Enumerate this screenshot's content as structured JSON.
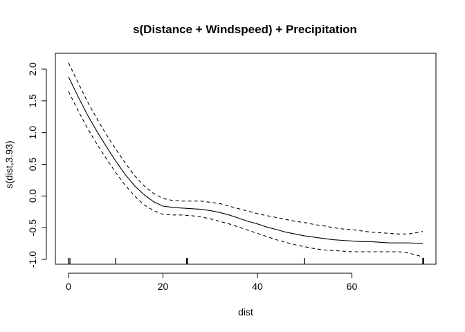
{
  "chart_data": {
    "type": "line",
    "title": "s(Distance + Windspeed) + Precipitation",
    "xlabel": "dist",
    "ylabel": "s(dist,3.93)",
    "xlim": [
      0,
      75
    ],
    "ylim": [
      -1.0,
      2.0
    ],
    "x_ticks": [
      0,
      20,
      40,
      60
    ],
    "y_ticks": [
      -1.0,
      -0.5,
      0.0,
      0.5,
      1.0,
      1.5,
      2.0
    ],
    "x_tick_labels": [
      "0",
      "20",
      "40",
      "60"
    ],
    "y_tick_labels": [
      "-1.0",
      "-0.5",
      "0.0",
      "0.5",
      "1.0",
      "1.5",
      "2.0"
    ],
    "grid": false,
    "series": [
      {
        "line_style": "solid",
        "x": [
          0,
          2,
          4,
          6,
          8,
          10,
          12,
          14,
          16,
          18,
          20,
          22,
          24,
          26,
          28,
          30,
          32,
          34,
          36,
          38,
          40,
          42,
          44,
          46,
          48,
          50,
          52,
          54,
          56,
          58,
          60,
          62,
          64,
          66,
          68,
          70,
          72,
          75
        ],
        "y": [
          1.88,
          1.57,
          1.28,
          1.02,
          0.78,
          0.55,
          0.34,
          0.16,
          0.02,
          -0.09,
          -0.16,
          -0.18,
          -0.19,
          -0.2,
          -0.21,
          -0.23,
          -0.26,
          -0.3,
          -0.35,
          -0.4,
          -0.44,
          -0.49,
          -0.53,
          -0.57,
          -0.6,
          -0.63,
          -0.65,
          -0.67,
          -0.69,
          -0.7,
          -0.71,
          -0.72,
          -0.72,
          -0.73,
          -0.74,
          -0.74,
          -0.74,
          -0.75
        ]
      },
      {
        "line_style": "dashed",
        "x": [
          0,
          2,
          4,
          6,
          8,
          10,
          12,
          14,
          16,
          18,
          20,
          22,
          24,
          26,
          28,
          30,
          32,
          34,
          36,
          38,
          40,
          42,
          44,
          46,
          48,
          50,
          52,
          54,
          56,
          58,
          60,
          62,
          64,
          66,
          68,
          70,
          72,
          75
        ],
        "y": [
          2.1,
          1.79,
          1.49,
          1.22,
          0.97,
          0.74,
          0.52,
          0.32,
          0.16,
          0.04,
          -0.04,
          -0.07,
          -0.08,
          -0.08,
          -0.08,
          -0.1,
          -0.12,
          -0.16,
          -0.2,
          -0.24,
          -0.28,
          -0.31,
          -0.34,
          -0.37,
          -0.4,
          -0.42,
          -0.45,
          -0.47,
          -0.5,
          -0.52,
          -0.53,
          -0.55,
          -0.57,
          -0.58,
          -0.59,
          -0.6,
          -0.6,
          -0.56
        ]
      },
      {
        "line_style": "dashed",
        "x": [
          0,
          2,
          4,
          6,
          8,
          10,
          12,
          14,
          16,
          18,
          20,
          22,
          24,
          26,
          28,
          30,
          32,
          34,
          36,
          38,
          40,
          42,
          44,
          46,
          48,
          50,
          52,
          54,
          56,
          58,
          60,
          62,
          64,
          66,
          68,
          70,
          72,
          75
        ],
        "y": [
          1.65,
          1.35,
          1.07,
          0.82,
          0.59,
          0.37,
          0.17,
          0.0,
          -0.14,
          -0.23,
          -0.29,
          -0.3,
          -0.3,
          -0.31,
          -0.33,
          -0.36,
          -0.4,
          -0.44,
          -0.49,
          -0.54,
          -0.59,
          -0.64,
          -0.69,
          -0.73,
          -0.77,
          -0.8,
          -0.83,
          -0.85,
          -0.86,
          -0.87,
          -0.88,
          -0.88,
          -0.88,
          -0.88,
          -0.88,
          -0.88,
          -0.9,
          -0.96
        ]
      }
    ],
    "rug": [
      0,
      0.3,
      10,
      25,
      25.2,
      50,
      75,
      75.2
    ]
  }
}
